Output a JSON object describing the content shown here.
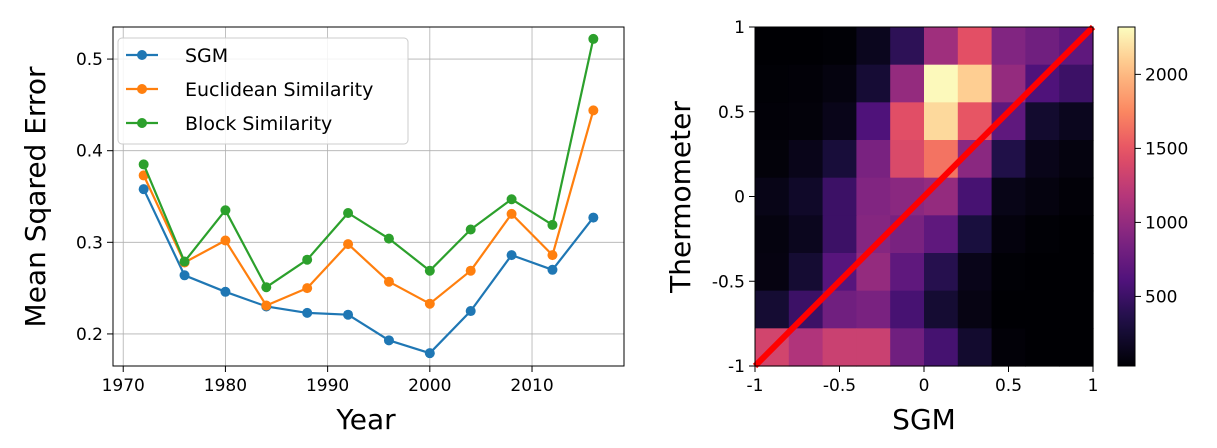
{
  "chart_data": [
    {
      "type": "line",
      "title": "",
      "xlabel": "Year",
      "ylabel": "Mean Sqared Error",
      "x": [
        1972,
        1976,
        1980,
        1984,
        1988,
        1992,
        1996,
        2000,
        2004,
        2008,
        2012,
        2016
      ],
      "xlim": [
        1969,
        2019
      ],
      "ylim": [
        0.165,
        0.535
      ],
      "xticks": [
        1970,
        1980,
        1990,
        2000,
        2010
      ],
      "xtick_labels": [
        "1970",
        "1980",
        "1990",
        "2000",
        "2010"
      ],
      "yticks": [
        0.2,
        0.3,
        0.4,
        0.5
      ],
      "ytick_labels": [
        "0.2",
        "0.3",
        "0.4",
        "0.5"
      ],
      "grid": true,
      "legend_position": "top-left",
      "series": [
        {
          "name": "SGM",
          "color": "#1f77b4",
          "values": [
            0.358,
            0.264,
            0.246,
            0.23,
            0.223,
            0.221,
            0.193,
            0.179,
            0.225,
            0.286,
            0.27,
            0.327
          ]
        },
        {
          "name": "Euclidean Similarity",
          "color": "#ff7f0e",
          "values": [
            0.373,
            0.278,
            0.302,
            0.231,
            0.25,
            0.298,
            0.257,
            0.233,
            0.269,
            0.331,
            0.286,
            0.444
          ]
        },
        {
          "name": "Block Similarity",
          "color": "#2ca02c",
          "values": [
            0.385,
            0.279,
            0.335,
            0.251,
            0.281,
            0.332,
            0.304,
            0.269,
            0.314,
            0.347,
            0.319,
            0.522
          ]
        }
      ]
    },
    {
      "type": "heatmap",
      "title": "",
      "xlabel": "SGM",
      "ylabel": "Thermometer",
      "xlim": [
        -1,
        1
      ],
      "ylim": [
        -1,
        1
      ],
      "xticks": [
        -1,
        -0.5,
        0,
        0.5,
        1
      ],
      "xtick_labels": [
        "-1",
        "-0.5",
        "0",
        "0.5",
        "1"
      ],
      "yticks": [
        -1,
        -0.5,
        0,
        0.5,
        1
      ],
      "ytick_labels": [
        "-1",
        "-0.5",
        "0",
        "0.5",
        "1"
      ],
      "colormap": "magma",
      "color_range": [
        30,
        2320
      ],
      "colorbar_ticks": [
        500,
        1000,
        1500,
        2000
      ],
      "colorbar_tick_labels": [
        "500",
        "1000",
        "1500",
        "2000"
      ],
      "line": {
        "color": "#ff0000",
        "x": [
          -1,
          1
        ],
        "y": [
          -1,
          1
        ]
      },
      "rows_top_to_bottom": [
        [
          30,
          30,
          40,
          150,
          420,
          1060,
          1460,
          900,
          800,
          700
        ],
        [
          40,
          50,
          80,
          260,
          1000,
          2300,
          2100,
          1000,
          600,
          500
        ],
        [
          50,
          60,
          130,
          600,
          1450,
          2150,
          1500,
          700,
          230,
          150
        ],
        [
          60,
          130,
          280,
          850,
          1400,
          1650,
          950,
          350,
          130,
          80
        ],
        [
          120,
          200,
          500,
          900,
          950,
          1000,
          560,
          120,
          80,
          50
        ],
        [
          80,
          150,
          500,
          920,
          850,
          700,
          300,
          70,
          40,
          30
        ],
        [
          90,
          250,
          650,
          1000,
          700,
          380,
          130,
          40,
          30,
          30
        ],
        [
          250,
          500,
          800,
          850,
          560,
          250,
          100,
          30,
          30,
          30
        ],
        [
          1350,
          1150,
          1300,
          1300,
          800,
          550,
          230,
          50,
          30,
          30
        ]
      ]
    }
  ]
}
